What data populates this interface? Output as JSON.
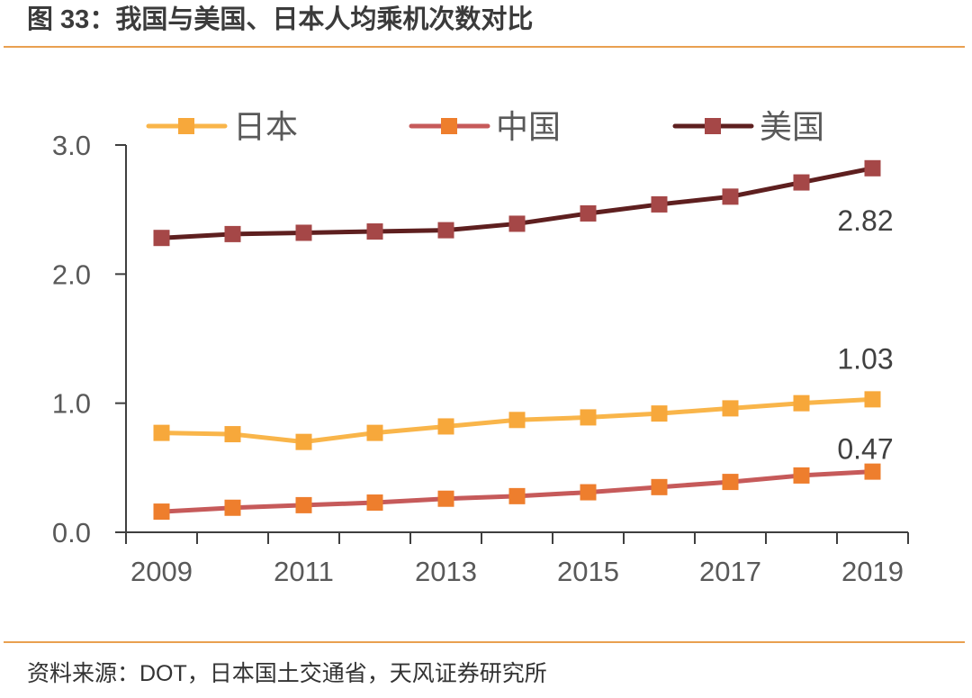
{
  "title": "图 33：我国与美国、日本人均乘机次数对比",
  "source": "资料来源：DOT，日本国土交通省，天风证券研究所",
  "colors": {
    "rule": "#E9A050",
    "axis": "#3f3f3f"
  },
  "chart_data": {
    "type": "line",
    "x": [
      2009,
      2010,
      2011,
      2012,
      2013,
      2014,
      2015,
      2016,
      2017,
      2018,
      2019
    ],
    "xticks": [
      "2009",
      "2011",
      "2013",
      "2015",
      "2017",
      "2019"
    ],
    "yticks": [
      "0.0",
      "1.0",
      "2.0",
      "3.0"
    ],
    "ylim": [
      0,
      3
    ],
    "grid": false,
    "legend": "top",
    "series": [
      {
        "name": "日本",
        "values": [
          0.77,
          0.76,
          0.7,
          0.77,
          0.82,
          0.87,
          0.89,
          0.92,
          0.96,
          1.0,
          1.03
        ],
        "line_color": "#F9B54A",
        "marker_color": "#F7A83B",
        "end_label": "1.03"
      },
      {
        "name": "中国",
        "values": [
          0.16,
          0.19,
          0.21,
          0.23,
          0.26,
          0.28,
          0.31,
          0.35,
          0.39,
          0.44,
          0.47
        ],
        "line_color": "#C65A5A",
        "marker_color": "#EE7E2D",
        "end_label": "0.47"
      },
      {
        "name": "美国",
        "values": [
          2.28,
          2.31,
          2.32,
          2.33,
          2.34,
          2.39,
          2.47,
          2.54,
          2.6,
          2.71,
          2.82
        ],
        "line_color": "#5E1F1F",
        "marker_color": "#A54747",
        "end_label": "2.82"
      }
    ]
  }
}
